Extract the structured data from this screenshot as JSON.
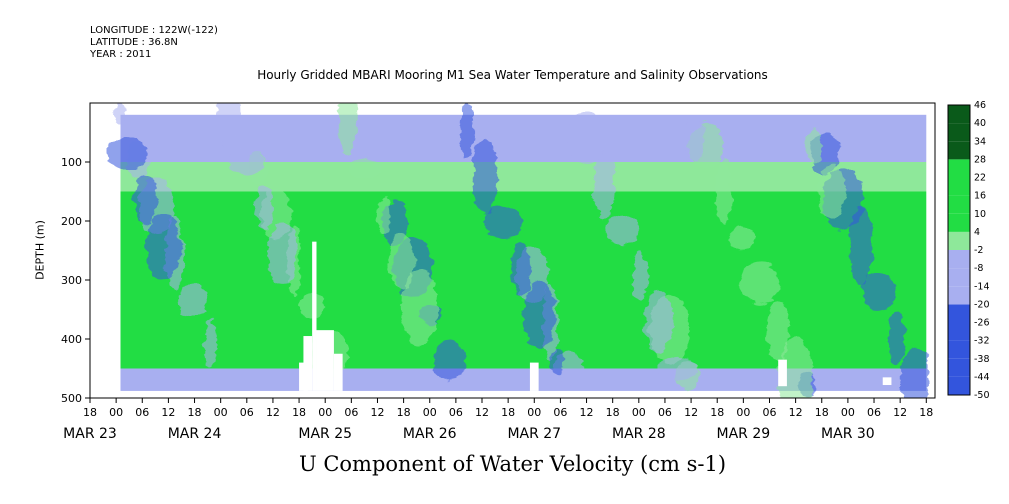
{
  "header": {
    "longitude": "LONGITUDE : 122W(-122)",
    "latitude": "LATITUDE : 36.8N",
    "year": "YEAR : 2011"
  },
  "title": "Hourly Gridded MBARI Mooring M1 Sea Water Temperature and Salinity Observations",
  "ylabel": "DEPTH (m)",
  "bottom_label": "U Component of Water Velocity (cm s-1)",
  "colors": {
    "strong_negative": "#000080",
    "negative": "#3355dd",
    "weak_negative": "#a8aff0",
    "weak_positive": "#8ee89a",
    "positive": "#22dd44",
    "strong_positive": "#0a5a1a"
  },
  "chart_data": {
    "type": "heatmap",
    "title": "Hourly Gridded MBARI Mooring M1 Sea Water Temperature and Salinity Observations",
    "xlabel": "",
    "ylabel": "DEPTH (m)",
    "zlabel": "U Component of Water Velocity (cm s-1)",
    "xlim": [
      "2011-03-22T18:00",
      "2011-03-30T20:00"
    ],
    "data_xlim": [
      "2011-03-23T01:00",
      "2011-03-30T18:00"
    ],
    "ylim": [
      500,
      0
    ],
    "data_ylim": [
      20,
      488
    ],
    "y_reversed": true,
    "yticks": [
      100,
      200,
      300,
      400,
      500
    ],
    "xtick_hours": [
      "18",
      "00",
      "06",
      "12",
      "18",
      "00",
      "06",
      "12",
      "18",
      "00",
      "06",
      "12",
      "18",
      "00",
      "06",
      "12",
      "18",
      "00",
      "06",
      "12",
      "18",
      "00",
      "06",
      "12",
      "18",
      "00",
      "06",
      "12",
      "18",
      "00",
      "06",
      "12",
      "18"
    ],
    "date_labels": [
      {
        "label": "MAR 23",
        "x": "2011-03-22T18:00"
      },
      {
        "label": "MAR 24",
        "x": "2011-03-23T18:00"
      },
      {
        "label": "MAR 25",
        "x": "2011-03-25T00:00"
      },
      {
        "label": "MAR 26",
        "x": "2011-03-26T00:00"
      },
      {
        "label": "MAR 27",
        "x": "2011-03-27T00:00"
      },
      {
        "label": "MAR 28",
        "x": "2011-03-28T00:00"
      },
      {
        "label": "MAR 29",
        "x": "2011-03-29T00:00"
      },
      {
        "label": "MAR 30",
        "x": "2011-03-30T00:00"
      }
    ],
    "colorbar": {
      "levels": [
        -50,
        -44,
        -38,
        -32,
        -26,
        -20,
        -14,
        -8,
        -2,
        4,
        10,
        16,
        22,
        28,
        34,
        40,
        46
      ],
      "tick_labels": [
        "46",
        "40",
        "34",
        "28",
        "22",
        "16",
        "10",
        "4",
        "-2",
        "-8",
        "-14",
        "-20",
        "-26",
        "-32",
        "-38",
        "-44",
        "-50"
      ]
    },
    "depth_profile_typical": {
      "depths": [
        25,
        75,
        125,
        175,
        225,
        275,
        325,
        375,
        425,
        475
      ],
      "u_values": [
        -10,
        -6,
        2,
        10,
        14,
        14,
        12,
        10,
        6,
        -2
      ]
    },
    "missing_data_gaps": [
      {
        "time_start": "2011-03-24T18:00",
        "time_end": "2011-03-24T20:00",
        "depth_start": 440,
        "depth_end": 488
      },
      {
        "time_start": "2011-03-24T19:00",
        "time_end": "2011-03-24T21:00",
        "depth_start": 395,
        "depth_end": 488
      },
      {
        "time_start": "2011-03-24T21:00",
        "time_end": "2011-03-24T22:00",
        "depth_start": 235,
        "depth_end": 488
      },
      {
        "time_start": "2011-03-24T22:00",
        "time_end": "2011-03-25T02:00",
        "depth_start": 385,
        "depth_end": 488
      },
      {
        "time_start": "2011-03-25T02:00",
        "time_end": "2011-03-25T04:00",
        "depth_start": 425,
        "depth_end": 488
      },
      {
        "time_start": "2011-03-26T23:00",
        "time_end": "2011-03-27T01:00",
        "depth_start": 440,
        "depth_end": 488
      },
      {
        "time_start": "2011-03-29T08:00",
        "time_end": "2011-03-29T10:00",
        "depth_start": 435,
        "depth_end": 480
      },
      {
        "time_start": "2011-03-30T08:00",
        "time_end": "2011-03-30T10:00",
        "depth_start": 465,
        "depth_end": 478
      }
    ]
  }
}
